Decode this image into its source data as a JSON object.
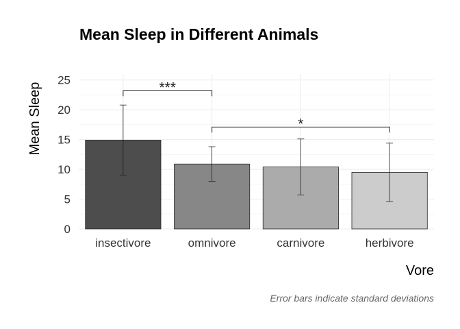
{
  "chart_data": {
    "type": "bar",
    "title": "Mean Sleep in Different Animals",
    "xlabel": "Vore",
    "ylabel": "Mean Sleep",
    "caption": "Error bars indicate standard deviations",
    "categories": [
      "insectivore",
      "omnivore",
      "carnivore",
      "herbivore"
    ],
    "values": [
      14.9,
      10.9,
      10.4,
      9.5
    ],
    "error": [
      5.9,
      2.9,
      4.7,
      4.9
    ],
    "colors": [
      "#4d4d4d",
      "#878787",
      "#ababab",
      "#cccccc"
    ],
    "ylim": [
      0,
      26
    ],
    "yticks": [
      0,
      5,
      10,
      15,
      20,
      25
    ],
    "grid": true,
    "legend": "none",
    "significance": [
      {
        "from": 0,
        "to": 1,
        "label": "***",
        "y": 23.2
      },
      {
        "from": 1,
        "to": 3,
        "label": "*",
        "y": 17.1
      }
    ]
  }
}
